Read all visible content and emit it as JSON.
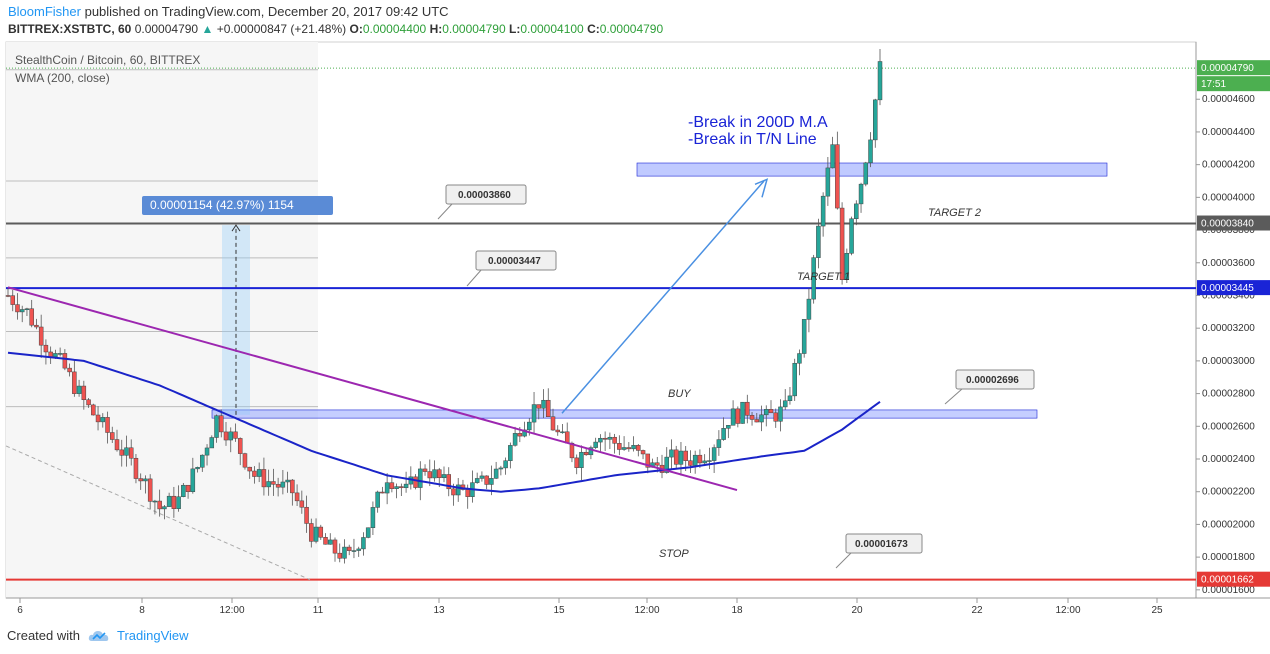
{
  "header": {
    "author": "BloomFisher",
    "published": "published on TradingView.com, December 20, 2017 09:42 UTC",
    "symbol": "BITTREX:XSTBTC, 60",
    "last": "0.00004790",
    "change": "+0.00000847 (+21.48%)",
    "o_label": "O:",
    "o": "0.00004400",
    "h_label": "H:",
    "h": "0.00004790",
    "l_label": "L:",
    "l": "0.00004100",
    "c_label": "C:",
    "c": "0.00004790",
    "up_arrow": "▲"
  },
  "legend": {
    "title": "StealthCoin / Bitcoin, 60, BITTREX",
    "indicator": "WMA (200, close)"
  },
  "footer": {
    "created_with": "Created with",
    "brand": "TradingView"
  },
  "colors": {
    "up": "#26a69a",
    "down": "#ef5350",
    "wma": "#1a24c8",
    "trendline": "#9c27b0",
    "target_line": "#5b5b5b",
    "support_line": "#1a24d6",
    "stop_line": "#e53935",
    "zone": "#8c9eff",
    "arrow": "#4a90e2"
  },
  "chart_data": {
    "type": "candlestick",
    "symbol": "StealthCoin / Bitcoin",
    "timeframe": "60",
    "exchange": "BITTREX",
    "ylim": [
      1.55e-05,
      4.95e-05
    ],
    "y_ticks": [
      "0.00001600",
      "0.00001800",
      "0.00002000",
      "0.00002200",
      "0.00002400",
      "0.00002600",
      "0.00002800",
      "0.00003000",
      "0.00003200",
      "0.00003400",
      "0.00003600",
      "0.00003800",
      "0.00004000",
      "0.00004200",
      "0.00004400",
      "0.00004600"
    ],
    "x_ticks": [
      "6",
      "8",
      "12:00",
      "11",
      "13",
      "15",
      "12:00",
      "18",
      "20",
      "22",
      "12:00",
      "25"
    ],
    "price_series_anchors": [
      [
        0,
        3.4e-05
      ],
      [
        2,
        3.3e-05
      ],
      [
        4,
        3.1e-05
      ],
      [
        6,
        2.95e-05
      ],
      [
        8,
        2.75e-05
      ],
      [
        10,
        2.6e-05
      ],
      [
        12,
        2.45e-05
      ],
      [
        14,
        2.3e-05
      ],
      [
        16,
        2.1e-05
      ],
      [
        18,
        2.15e-05
      ],
      [
        20,
        2.35e-05
      ],
      [
        22,
        2.65e-05
      ],
      [
        24,
        2.5e-05
      ],
      [
        26,
        2.3e-05
      ],
      [
        28,
        2.25e-05
      ],
      [
        30,
        2.2e-05
      ],
      [
        32,
        1.95e-05
      ],
      [
        34,
        1.85e-05
      ],
      [
        36,
        1.8e-05
      ],
      [
        38,
        2e-05
      ],
      [
        40,
        2.3e-05
      ],
      [
        42,
        2.2e-05
      ],
      [
        44,
        2.35e-05
      ],
      [
        46,
        2.25e-05
      ],
      [
        48,
        2.2e-05
      ],
      [
        50,
        2.25e-05
      ],
      [
        52,
        2.35e-05
      ],
      [
        54,
        2.6e-05
      ],
      [
        56,
        2.75e-05
      ],
      [
        58,
        2.55e-05
      ],
      [
        60,
        2.4e-05
      ],
      [
        62,
        2.55e-05
      ],
      [
        64,
        2.5e-05
      ],
      [
        66,
        2.45e-05
      ],
      [
        68,
        2.35e-05
      ],
      [
        70,
        2.4e-05
      ],
      [
        72,
        2.4e-05
      ],
      [
        74,
        2.45e-05
      ],
      [
        76,
        2.65e-05
      ],
      [
        78,
        2.7e-05
      ],
      [
        80,
        2.65e-05
      ],
      [
        82,
        2.7e-05
      ],
      [
        84,
        3.2e-05
      ],
      [
        86,
        4e-05
      ],
      [
        87,
        4.3e-05
      ],
      [
        88,
        3.5e-05
      ],
      [
        89,
        3.9e-05
      ],
      [
        90,
        4.1e-05
      ],
      [
        91,
        4.4e-05
      ],
      [
        92,
        4.79e-05
      ]
    ],
    "wma_anchors": [
      [
        0,
        3.05e-05
      ],
      [
        8,
        3e-05
      ],
      [
        16,
        2.85e-05
      ],
      [
        24,
        2.65e-05
      ],
      [
        32,
        2.45e-05
      ],
      [
        40,
        2.3e-05
      ],
      [
        48,
        2.22e-05
      ],
      [
        52,
        2.2e-05
      ],
      [
        56,
        2.22e-05
      ],
      [
        64,
        2.3e-05
      ],
      [
        72,
        2.35e-05
      ],
      [
        80,
        2.42e-05
      ],
      [
        84,
        2.45e-05
      ],
      [
        88,
        2.58e-05
      ],
      [
        92,
        2.75e-05
      ]
    ],
    "levels": [
      {
        "name": "TARGET 2",
        "value": 3.84e-05,
        "label": "0.00003840",
        "callout": "0.00003860"
      },
      {
        "name": "TARGET 1",
        "value": 3.445e-05,
        "label": "0.00003445",
        "callout": "0.00003447"
      },
      {
        "name": "STOP",
        "value": 1.662e-05,
        "label": "0.00001662",
        "callout": "0.00001673"
      },
      {
        "name": "BUY",
        "value": 2.67e-05,
        "callout": "0.00002696"
      }
    ],
    "last_price_label": "0.00004790",
    "countdown_label": "17:51",
    "measure_label": "0.00001154 (42.97%) 1154",
    "annotations": [
      "-Break in 200D M.A",
      "-Break in T/N Line",
      "TARGET 2",
      "TARGET 1",
      "BUY",
      "STOP"
    ]
  }
}
